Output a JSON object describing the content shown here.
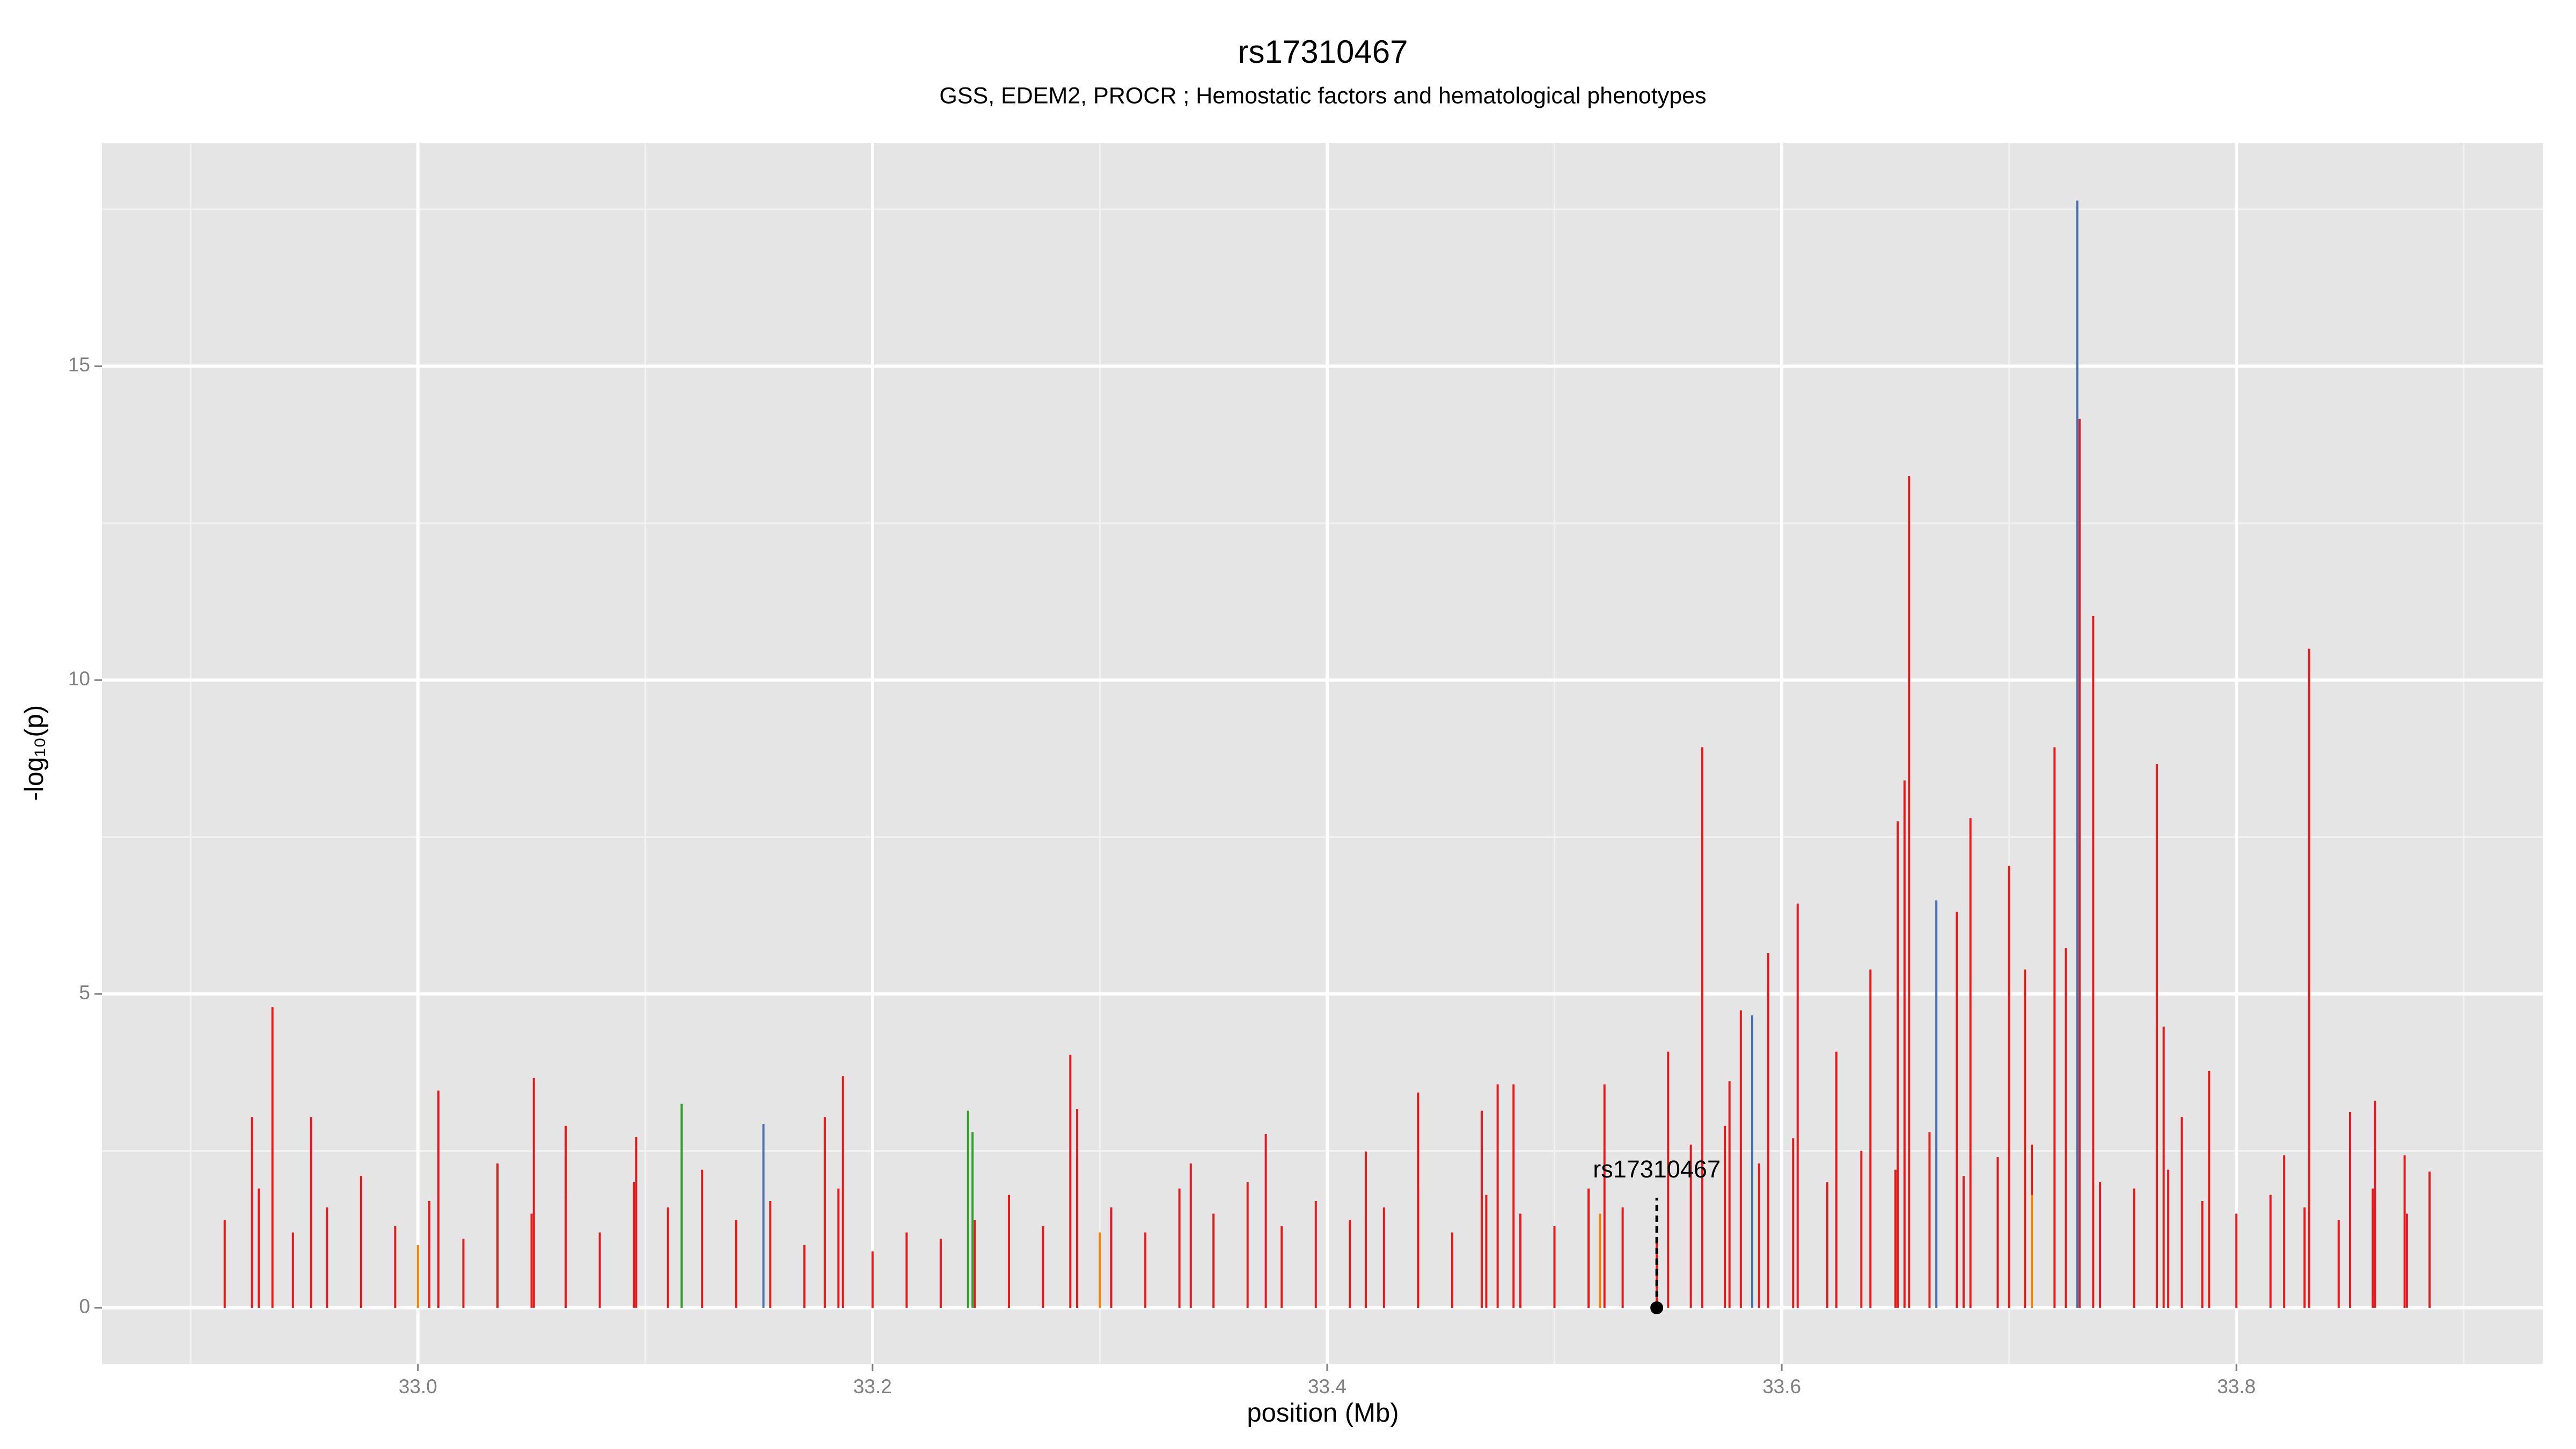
{
  "chart_data": {
    "type": "spike",
    "title": "rs17310467",
    "subtitle": "GSS, EDEM2, PROCR ; Hemostatic factors and hematological phenotypes",
    "x_label": "position (Mb)",
    "y_label": "-log₁₀(p)",
    "xlim": [
      32.861,
      33.935
    ],
    "ylim": [
      -0.89,
      18.56
    ],
    "xticks": [
      {
        "value": 33,
        "label": "33.0"
      },
      33.2,
      33.4,
      33.6,
      33.8
    ],
    "yticks": [
      0,
      5,
      10,
      15
    ],
    "grid": true,
    "annotation": {
      "label": "rs17310467",
      "x": 33.545,
      "y": 0
    },
    "series": [
      {
        "color": "#e41a1c",
        "x": [
          32.915,
          32.93,
          32.945,
          32.96,
          32.975,
          32.99,
          33.005,
          33.02,
          33.035,
          33.05,
          33.065,
          33.08,
          33.095,
          33.11,
          33.125,
          33.14,
          33.155,
          33.17,
          33.185,
          33.2,
          33.215,
          33.23,
          33.245,
          33.26,
          33.275,
          33.29,
          33.305,
          33.32,
          33.335,
          33.35,
          33.365,
          33.38,
          33.395,
          33.41,
          33.425,
          33.44,
          33.455,
          33.47,
          33.485,
          33.5,
          33.515,
          33.53,
          33.545,
          33.56,
          33.575,
          33.59,
          33.605,
          33.62,
          33.635,
          33.65,
          33.665,
          33.68,
          33.695,
          33.71,
          33.725,
          33.74,
          33.755,
          33.77,
          33.785,
          33.8,
          33.815,
          33.83,
          33.845,
          33.86,
          33.875
        ],
        "values": [
          1.4,
          1.9,
          1.2,
          1.6,
          2.1,
          1.3,
          1.7,
          1.1,
          2.3,
          1.5,
          1.8,
          1.2,
          2.0,
          1.6,
          2.2,
          1.4,
          1.7,
          1.0,
          1.9,
          0.9,
          1.2,
          1.1,
          1.4,
          1.8,
          1.3,
          2.4,
          1.6,
          1.2,
          1.9,
          1.5,
          2.0,
          1.3,
          1.7,
          1.4,
          1.6,
          1.9,
          1.2,
          1.8,
          1.5,
          1.3,
          1.9,
          1.6,
          1.1,
          2.6,
          2.9,
          2.3,
          2.7,
          2.0,
          2.5,
          2.2,
          2.8,
          2.1,
          2.4,
          2.6,
          2.3,
          2.0,
          1.9,
          2.2,
          1.7,
          1.5,
          1.8,
          1.6,
          1.4,
          1.9,
          1.5
        ]
      },
      {
        "color": "#e41a1c",
        "x": [
          32.927,
          32.936,
          32.953,
          33.009,
          33.051,
          33.065,
          33.096,
          33.179,
          33.187,
          33.287,
          33.29,
          33.34,
          33.373,
          33.417,
          33.44,
          33.468,
          33.475,
          33.482,
          33.522,
          33.55,
          33.565,
          33.577,
          33.582,
          33.594,
          33.607,
          33.624,
          33.639,
          33.651,
          33.654,
          33.656,
          33.677,
          33.683,
          33.7,
          33.707,
          33.72,
          33.725,
          33.731,
          33.737,
          33.765,
          33.768,
          33.776,
          33.788,
          33.821,
          33.832,
          33.85,
          33.861,
          33.874,
          33.885
        ],
        "values": [
          3.04,
          4.79,
          3.04,
          3.46,
          3.66,
          2.9,
          2.72,
          3.04,
          3.69,
          4.03,
          3.17,
          2.3,
          2.77,
          2.49,
          3.43,
          3.14,
          3.56,
          3.56,
          3.56,
          4.08,
          8.93,
          3.61,
          4.74,
          5.65,
          6.44,
          4.08,
          5.39,
          7.75,
          8.4,
          13.25,
          6.31,
          7.8,
          7.04,
          5.39,
          8.93,
          5.73,
          14.16,
          11.02,
          8.66,
          4.48,
          3.04,
          3.77,
          2.43,
          10.5,
          3.12,
          3.3,
          2.43,
          2.17
        ]
      },
      {
        "color": "#ff7f00",
        "x": [
          33.0,
          33.3,
          33.52,
          33.71
        ],
        "values": [
          1.0,
          1.2,
          1.5,
          1.8
        ]
      },
      {
        "color": "#33a02c",
        "x": [
          33.116,
          33.242,
          33.244
        ],
        "values": [
          3.25,
          3.14,
          2.8
        ]
      },
      {
        "color": "#4a6fb0",
        "x": [
          33.152,
          33.587,
          33.668,
          33.73
        ],
        "values": [
          2.93,
          4.66,
          6.49,
          17.64
        ]
      }
    ]
  }
}
